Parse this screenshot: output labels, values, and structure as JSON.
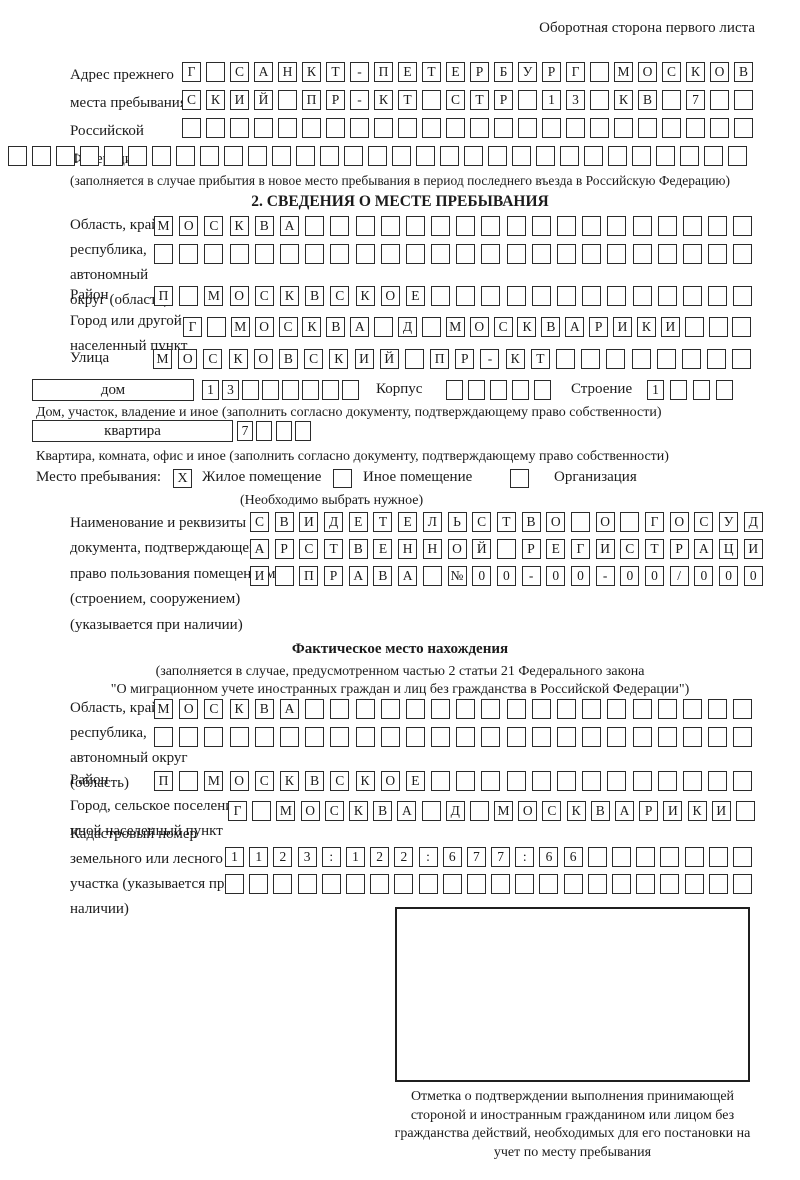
{
  "header": {
    "title": "Оборотная сторона первого листа"
  },
  "prev_address": {
    "label": "Адрес прежнего места пребывания в Российской Федерации",
    "row1": "Г САНКТ-ПЕТЕРБУРГ МОСКОВ",
    "row2": "СКИЙ ПР-КТ СТР 13 КВ 7  ",
    "row3": "                        ",
    "row4": "                               ",
    "note": "(заполняется в случае прибытия в новое место пребывания в период последнего въезда в Российскую Федерацию)"
  },
  "section2": {
    "title": "2. СВЕДЕНИЯ О МЕСТЕ ПРЕБЫВАНИЯ",
    "region": {
      "label": "Область, край, республика, автономный округ (область)",
      "row1": "МОСКВА                  ",
      "row2": "                        "
    },
    "district": {
      "label": "Район",
      "row": "П МОСКВСКОЕ             "
    },
    "city": {
      "label": "Город или другой населенный пункт",
      "row": "Г МОСКВА Д МОСКВАРИКИ   "
    },
    "street": {
      "label": "Улица",
      "row": "МОСКОВСКИЙ ПР-КТ        "
    },
    "house": {
      "box_label": "дом",
      "row": "13      ",
      "korpus_label": "Корпус",
      "korpus_row": "     ",
      "stroenie_label": "Строение",
      "stroenie_row": "1   ",
      "note": "Дом, участок, владение и иное (заполнить согласно документу, подтверждающему право собственности)"
    },
    "apartment": {
      "box_label": "квартира",
      "row": "7   ",
      "note": "Квартира, комната, офис и иное (заполнить согласно документу, подтверждающему право собственности)"
    },
    "stay_type": {
      "label": "Место пребывания:",
      "mark": "X",
      "option1": "Жилое помещение",
      "option2": "Иное помещение",
      "option3": "Организация",
      "note": "(Необходимо выбрать нужное)"
    },
    "document": {
      "label": "Наименование и реквизиты документа, подтверждающего право пользования помещением (строением, сооружением) (указывается при наличии)",
      "row1": "СВИДЕТЕЛЬСТВО О ГОСУД",
      "row2": "АРСТВЕННОЙ РЕГИСТРАЦИ",
      "row3": "И ПРАВА №00-00-00/000"
    }
  },
  "actual_location": {
    "title": "Фактическое место нахождения",
    "note1": "(заполняется в случае, предусмотренном частью 2 статьи 21 Федерального закона",
    "note2": "\"О миграционном учете иностранных граждан и лиц без гражданства в Российской Федерации\")",
    "region": {
      "label": "Область, край, республика, автономный округ (область)",
      "row1": "МОСКВА                  ",
      "row2": "                        "
    },
    "district": {
      "label": "Район",
      "row": "П МОСКВСКОЕ             "
    },
    "city": {
      "label": "Город, сельское поселение, иной населенный пункт",
      "row": "Г МОСКВА Д МОСКВАРИКИ "
    },
    "cadastre": {
      "label": "Кадастровый номер земельного или лесного участка (указывается при наличии)",
      "row1": "1123:122:677:66       ",
      "row2": "                      "
    }
  },
  "confirmation": {
    "note": "Отметка о подтверждении выполнения принимающей стороной и иностранным гражданином или лицом без гражданства действий, необходимых для его постановки на учет по месту пребывания"
  }
}
